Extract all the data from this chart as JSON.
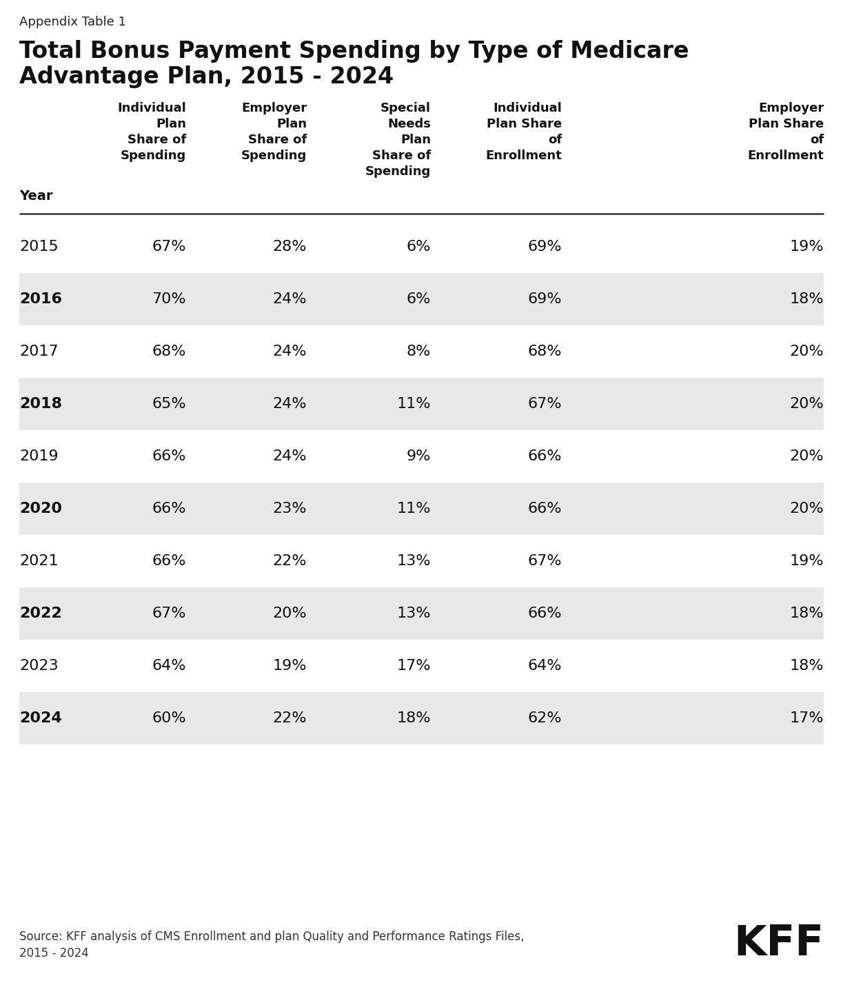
{
  "appendix_label": "Appendix Table 1",
  "title_line1": "Total Bonus Payment Spending by Type of Medicare",
  "title_line2": "Advantage Plan, 2015 - 2024",
  "header_texts": [
    "Year",
    "Individual\nPlan\nShare of\nSpending",
    "Employer\nPlan\nShare of\nSpending",
    "Special\nNeeds\nPlan\nShare of\nSpending",
    "Individual\nPlan Share\nof\nEnrollment",
    "Employer\nPlan Share\nof\nEnrollment"
  ],
  "years": [
    "2015",
    "2016",
    "2017",
    "2018",
    "2019",
    "2020",
    "2021",
    "2022",
    "2023",
    "2024"
  ],
  "data": [
    [
      "67%",
      "28%",
      "6%",
      "69%",
      "19%"
    ],
    [
      "70%",
      "24%",
      "6%",
      "69%",
      "18%"
    ],
    [
      "68%",
      "24%",
      "8%",
      "68%",
      "20%"
    ],
    [
      "65%",
      "24%",
      "11%",
      "67%",
      "20%"
    ],
    [
      "66%",
      "24%",
      "9%",
      "66%",
      "20%"
    ],
    [
      "66%",
      "23%",
      "11%",
      "66%",
      "20%"
    ],
    [
      "66%",
      "22%",
      "13%",
      "67%",
      "19%"
    ],
    [
      "67%",
      "20%",
      "13%",
      "66%",
      "18%"
    ],
    [
      "64%",
      "19%",
      "17%",
      "64%",
      "18%"
    ],
    [
      "60%",
      "22%",
      "18%",
      "62%",
      "17%"
    ]
  ],
  "shaded_rows": [
    1,
    3,
    5,
    7,
    9
  ],
  "row_bg_shaded": "#e8e8e8",
  "row_bg_white": "#ffffff",
  "source_text": "Source: KFF analysis of CMS Enrollment and plan Quality and Performance Ratings Files,\n2015 - 2024",
  "kff_logo": "KFF",
  "background_color": "#ffffff",
  "fig_width": 12.2,
  "fig_height": 14.58,
  "dpi": 100
}
